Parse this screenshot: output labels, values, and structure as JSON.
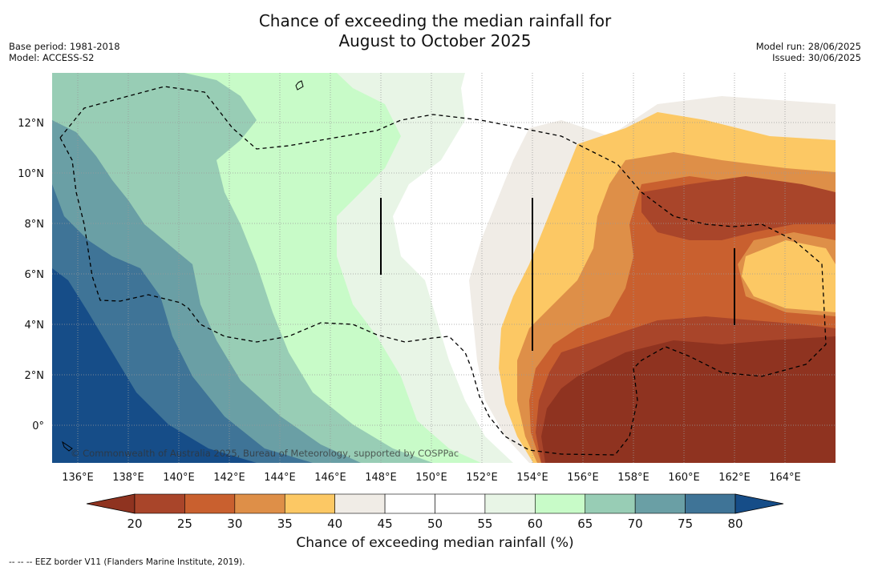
{
  "title": {
    "line1": "Chance of exceeding the median rainfall for",
    "line2": "August to October 2025"
  },
  "meta_left": {
    "base_period": "Base period: 1981-2018",
    "model": "Model: ACCESS-S2"
  },
  "meta_right": {
    "model_run": "Model run: 28/06/2025",
    "issued": "Issued: 30/06/2025"
  },
  "map": {
    "longitude_labels": [
      "136°E",
      "138°E",
      "140°E",
      "142°E",
      "144°E",
      "146°E",
      "148°E",
      "150°E",
      "152°E",
      "154°E",
      "156°E",
      "158°E",
      "160°E",
      "162°E",
      "164°E"
    ],
    "latitude_labels": [
      "12°N",
      "10°N",
      "8°N",
      "6°N",
      "4°N",
      "2°N",
      "0°"
    ],
    "copyright": "© Commonwealth of Australia 2025, Bureau of Meteorology, supported by COSPPac"
  },
  "colorbar": {
    "title": "Chance of exceeding median rainfall (%)",
    "ticks": [
      "20",
      "25",
      "30",
      "35",
      "40",
      "45",
      "50",
      "55",
      "60",
      "65",
      "70",
      "75",
      "80"
    ],
    "colors": {
      "under": "#8f3320",
      "bins": [
        "#a9452a",
        "#c9602f",
        "#de8f48",
        "#fcc864",
        "#f0ece6",
        "#ffffff",
        "#ffffff",
        "#e8f5e6",
        "#c8fbc8",
        "#98cdb5",
        "#6a9fa5",
        "#3f7497"
      ],
      "over": "#164d88"
    }
  },
  "footer": "-- -- -- EEZ border V11 (Flanders Marine Institute, 2019)."
}
